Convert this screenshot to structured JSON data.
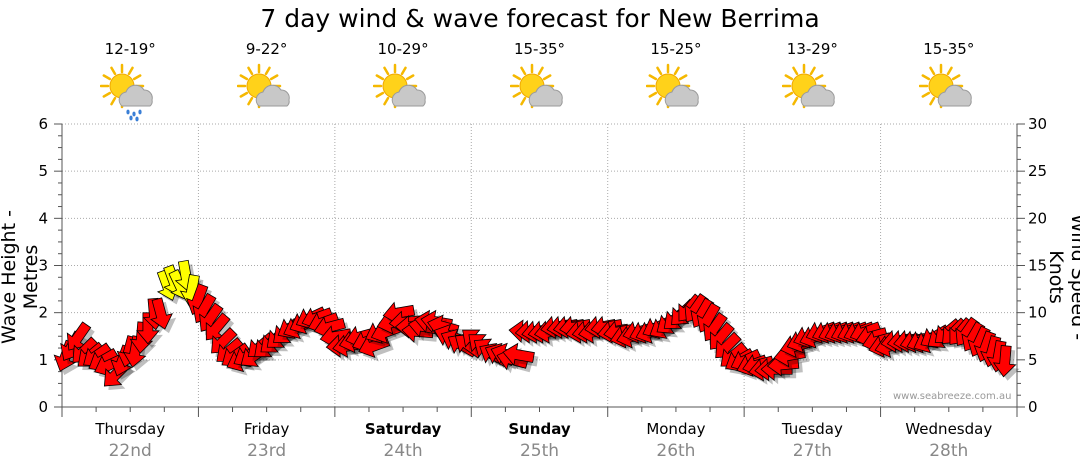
{
  "title": "7 day wind & wave forecast for New Berrima",
  "left_axis_label": "Wave Height - Metres",
  "right_axis_label": "Wind Speed - Knots",
  "credit": "www.seabreeze.com.au",
  "days": [
    {
      "name": "Thursday",
      "date": "22nd",
      "temps": "12-19°",
      "icon": "sun-cloud-rain-icon",
      "bold": false
    },
    {
      "name": "Friday",
      "date": "23rd",
      "temps": "9-22°",
      "icon": "sun-cloud-icon",
      "bold": false
    },
    {
      "name": "Saturday",
      "date": "24th",
      "temps": "10-29°",
      "icon": "sun-cloud-icon",
      "bold": true
    },
    {
      "name": "Sunday",
      "date": "25th",
      "temps": "15-35°",
      "icon": "sun-cloud-icon",
      "bold": true
    },
    {
      "name": "Monday",
      "date": "26th",
      "temps": "15-25°",
      "icon": "sun-cloud-icon",
      "bold": false
    },
    {
      "name": "Tuesday",
      "date": "27th",
      "temps": "13-29°",
      "icon": "sun-cloud-icon",
      "bold": false
    },
    {
      "name": "Wednesday",
      "date": "28th",
      "temps": "15-35°",
      "icon": "sun-cloud-icon",
      "bold": false
    }
  ],
  "chart_data": {
    "type": "line",
    "title": "7 day wind & wave forecast for New Berrima",
    "ylabel_left": "Wave Height - Metres",
    "ylabel_right": "Wind Speed - Knots",
    "ylim_left": [
      0,
      6
    ],
    "ylim_right": [
      0,
      30
    ],
    "yticks_left": [
      0,
      1,
      2,
      3,
      4,
      5,
      6
    ],
    "yticks_right": [
      0,
      5,
      10,
      15,
      20,
      25,
      30
    ],
    "grid": true,
    "categories": [
      "Thursday 22nd",
      "Friday 23rd",
      "Saturday 24th",
      "Sunday 25th",
      "Monday 26th",
      "Tuesday 27th",
      "Wednesday 28th"
    ],
    "colors": {
      "wind_strong": "#ff0000",
      "wind_gust": "#ffff00",
      "grid": "#aaaaaa",
      "outline": "#000000"
    },
    "series": [
      {
        "values_knots": [
          5.5,
          6.5,
          7.5,
          6,
          5.5,
          5.5,
          5,
          4.5,
          3.5,
          5,
          6,
          6,
          7.5,
          8.5,
          10,
          10,
          13,
          13.5,
          13,
          14,
          12.5,
          11.5,
          10.5,
          9.5,
          8.5,
          7,
          6,
          5.5,
          5,
          5.5,
          5.5,
          6.5,
          6.5,
          7,
          7.5,
          8,
          8.5,
          8.5,
          9,
          9.5,
          9.5,
          9,
          8.5,
          7.5,
          6.5,
          6.5,
          7,
          7.5,
          7,
          6.5,
          8,
          8,
          9,
          10,
          9,
          8.5,
          8,
          8.5,
          9,
          9,
          8.5,
          7.5,
          7,
          6.5,
          6.5,
          7,
          6.5,
          6,
          5.5,
          5.5,
          5.5,
          5,
          5.5,
          8,
          8,
          8,
          8,
          8,
          8.5,
          8.5,
          8.5,
          8.5,
          8,
          8,
          8,
          8.5,
          8.5,
          8,
          8,
          7.5,
          7.5,
          8,
          8,
          8,
          8.5,
          8.5,
          9,
          9.5,
          10,
          10.5,
          10.5,
          10,
          9.5,
          8.5,
          7.5,
          6.5,
          5.5,
          5,
          5,
          4.5,
          4.5,
          4,
          4,
          4,
          4.5,
          5.5,
          6.5,
          7,
          7.5,
          7.5,
          8,
          8,
          8,
          8,
          8,
          8,
          8,
          8,
          7.5,
          7,
          6.5,
          6.5,
          7,
          7,
          7,
          7,
          7,
          7,
          7.5,
          7.5,
          8,
          8,
          8,
          8,
          7.5,
          7,
          6.5,
          6,
          5.5,
          5
        ],
        "directions_deg": [
          200,
          210,
          215,
          225,
          230,
          235,
          240,
          245,
          225,
          200,
          195,
          190,
          185,
          180,
          175,
          165,
          160,
          160,
          155,
          170,
          190,
          200,
          210,
          215,
          220,
          225,
          230,
          235,
          245,
          240,
          235,
          230,
          230,
          230,
          230,
          230,
          240,
          245,
          245,
          245,
          250,
          250,
          255,
          260,
          265,
          260,
          255,
          255,
          250,
          250,
          245,
          250,
          255,
          260,
          265,
          270,
          275,
          280,
          280,
          280,
          285,
          290,
          295,
          300,
          305,
          310,
          310,
          305,
          300,
          295,
          290,
          285,
          280,
          275,
          265,
          260,
          260,
          260,
          260,
          260,
          260,
          260,
          260,
          260,
          260,
          260,
          260,
          260,
          260,
          255,
          255,
          255,
          250,
          250,
          245,
          240,
          235,
          230,
          225,
          220,
          215,
          210,
          210,
          215,
          220,
          225,
          230,
          240,
          245,
          250,
          255,
          260,
          265,
          270,
          265,
          260,
          255,
          250,
          250,
          250,
          250,
          250,
          250,
          250,
          250,
          250,
          250,
          250,
          255,
          255,
          255,
          255,
          260,
          260,
          260,
          255,
          250,
          245,
          240,
          235,
          230,
          225,
          220,
          215,
          210,
          205,
          200,
          195,
          190,
          185
        ]
      }
    ]
  }
}
